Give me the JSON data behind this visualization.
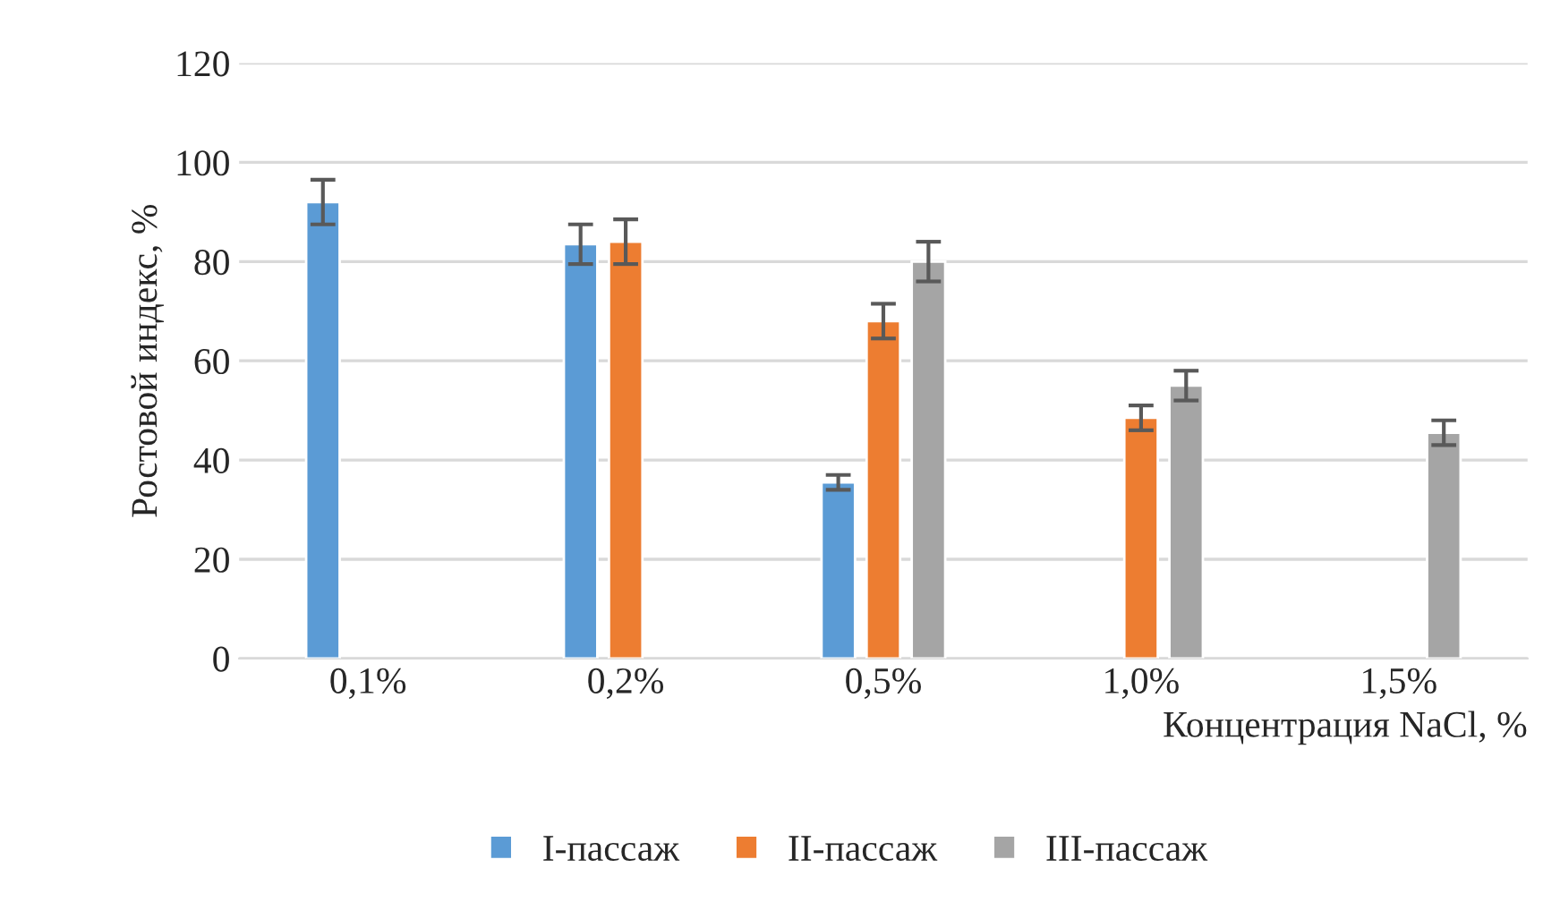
{
  "chart_data": {
    "type": "bar",
    "xlabel": "Концентрация NaCl, %",
    "ylabel": "Ростовой индекс, %",
    "categories": [
      "0,1%",
      "0,2%",
      "0,5%",
      "1,0%",
      "1,5%"
    ],
    "series": [
      {
        "name": "I-пассаж",
        "color": "#5b9bd5",
        "values": [
          92,
          83.5,
          35.5,
          null,
          null
        ],
        "errors": [
          4.5,
          4,
          1.5,
          null,
          null
        ]
      },
      {
        "name": "II-пассаж",
        "color": "#ed7d31",
        "values": [
          null,
          84,
          68,
          48.5,
          null
        ],
        "errors": [
          null,
          4.5,
          3.5,
          2.5,
          null
        ]
      },
      {
        "name": "III-пассаж",
        "color": "#a5a5a5",
        "values": [
          null,
          null,
          80,
          55,
          45.5
        ],
        "errors": [
          null,
          null,
          4,
          3,
          2.5
        ]
      }
    ],
    "ylim": [
      0,
      120
    ],
    "yticks": [
      0,
      20,
      40,
      60,
      80,
      100,
      120
    ],
    "grid": "y",
    "legend": "bottom"
  }
}
